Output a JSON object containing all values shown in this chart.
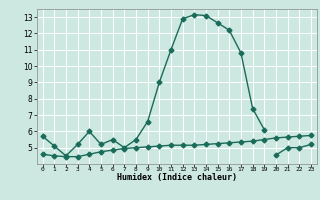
{
  "xlabel": "Humidex (Indice chaleur)",
  "ylabel": "",
  "background_color": "#cce8e0",
  "grid_color": "#ffffff",
  "line_color": "#1a6b5a",
  "x": [
    0,
    1,
    2,
    3,
    4,
    5,
    6,
    7,
    8,
    9,
    10,
    11,
    12,
    13,
    14,
    15,
    16,
    17,
    18,
    19,
    20,
    21,
    22,
    23
  ],
  "line1": [
    5.7,
    5.1,
    4.5,
    5.2,
    6.0,
    5.2,
    5.5,
    5.0,
    5.5,
    6.6,
    9.0,
    11.0,
    12.9,
    13.15,
    13.1,
    12.65,
    12.2,
    10.8,
    7.4,
    6.1,
    null,
    null,
    null,
    null
  ],
  "line2": [
    null,
    null,
    null,
    null,
    null,
    null,
    null,
    null,
    null,
    null,
    null,
    null,
    null,
    null,
    null,
    null,
    null,
    null,
    null,
    null,
    4.55,
    5.0,
    5.0,
    5.2
  ],
  "line3": [
    4.6,
    4.5,
    4.45,
    4.45,
    4.6,
    4.75,
    4.85,
    4.95,
    5.0,
    5.05,
    5.1,
    5.15,
    5.15,
    5.15,
    5.2,
    5.25,
    5.3,
    5.35,
    5.4,
    5.5,
    5.6,
    5.65,
    5.7,
    5.75
  ],
  "ylim": [
    4.0,
    13.5
  ],
  "xlim": [
    -0.5,
    23.5
  ],
  "yticks": [
    5,
    6,
    7,
    8,
    9,
    10,
    11,
    12,
    13
  ],
  "xticks": [
    0,
    1,
    2,
    3,
    4,
    5,
    6,
    7,
    8,
    9,
    10,
    11,
    12,
    13,
    14,
    15,
    16,
    17,
    18,
    19,
    20,
    21,
    22,
    23
  ]
}
